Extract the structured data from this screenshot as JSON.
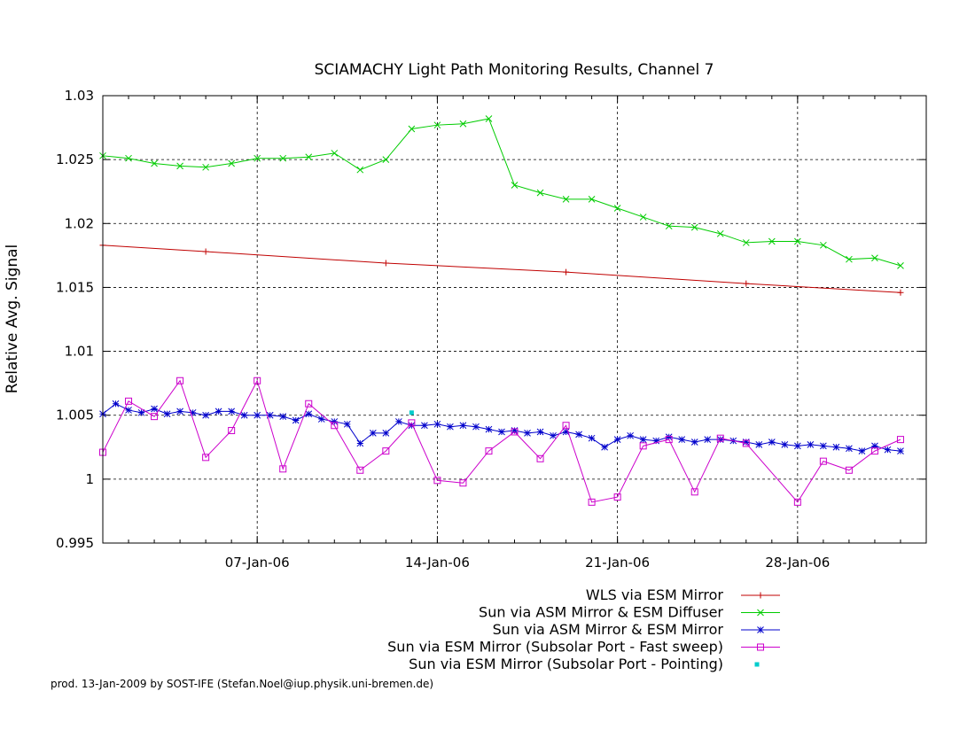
{
  "chart_data": {
    "type": "line",
    "title": "SCIAMACHY Light Path Monitoring Results, Channel 7",
    "xlabel": "",
    "ylabel": "Relative Avg. Signal",
    "x_range": [
      "2006-01-01",
      "2006-02-02"
    ],
    "x_ticks": [
      {
        "date": "2006-01-07",
        "label": "07-Jan-06"
      },
      {
        "date": "2006-01-14",
        "label": "14-Jan-06"
      },
      {
        "date": "2006-01-21",
        "label": "21-Jan-06"
      },
      {
        "date": "2006-01-28",
        "label": "28-Jan-06"
      }
    ],
    "ylim": [
      0.995,
      1.03
    ],
    "y_ticks": [
      0.995,
      1.0,
      1.005,
      1.01,
      1.015,
      1.02,
      1.025,
      1.03
    ],
    "y_tick_labels": [
      "0.995",
      "1",
      "1.005",
      "1.01",
      "1.015",
      "1.02",
      "1.025",
      "1.03"
    ],
    "grid": true,
    "legend_position": "bottom-right",
    "series": [
      {
        "name": "WLS via ESM Mirror",
        "color": "#c00000",
        "marker": "plus",
        "line": true,
        "points": [
          [
            "2006-01-01",
            1.0183
          ],
          [
            "2006-01-05",
            1.0178
          ],
          [
            "2006-01-12",
            1.0169
          ],
          [
            "2006-01-19",
            1.0162
          ],
          [
            "2006-01-26",
            1.0153
          ],
          [
            "2006-02-01",
            1.0146
          ]
        ]
      },
      {
        "name": "Sun via ASM Mirror & ESM Diffuser",
        "color": "#00cc00",
        "marker": "x",
        "line": true,
        "points": [
          [
            "2006-01-01",
            1.0253
          ],
          [
            "2006-01-02",
            1.0251
          ],
          [
            "2006-01-03",
            1.0247
          ],
          [
            "2006-01-04",
            1.0245
          ],
          [
            "2006-01-05",
            1.0244
          ],
          [
            "2006-01-06",
            1.0247
          ],
          [
            "2006-01-07",
            1.0251
          ],
          [
            "2006-01-08",
            1.0251
          ],
          [
            "2006-01-09",
            1.0252
          ],
          [
            "2006-01-10",
            1.0255
          ],
          [
            "2006-01-11",
            1.0242
          ],
          [
            "2006-01-12",
            1.025
          ],
          [
            "2006-01-13",
            1.0274
          ],
          [
            "2006-01-14",
            1.0277
          ],
          [
            "2006-01-15",
            1.0278
          ],
          [
            "2006-01-16",
            1.0282
          ],
          [
            "2006-01-17",
            1.023
          ],
          [
            "2006-01-18",
            1.0224
          ],
          [
            "2006-01-19",
            1.0219
          ],
          [
            "2006-01-20",
            1.0219
          ],
          [
            "2006-01-21",
            1.0212
          ],
          [
            "2006-01-22",
            1.0205
          ],
          [
            "2006-01-23",
            1.0198
          ],
          [
            "2006-01-24",
            1.0197
          ],
          [
            "2006-01-25",
            1.0192
          ],
          [
            "2006-01-26",
            1.0185
          ],
          [
            "2006-01-27",
            1.0186
          ],
          [
            "2006-01-28",
            1.0186
          ],
          [
            "2006-01-29",
            1.0183
          ],
          [
            "2006-01-30",
            1.0172
          ],
          [
            "2006-01-31",
            1.0173
          ],
          [
            "2006-02-01",
            1.0167
          ]
        ]
      },
      {
        "name": "Sun via ASM Mirror & ESM Mirror",
        "color": "#0000cc",
        "marker": "star",
        "line": true,
        "points": [
          [
            "2006-01-01",
            1.0051
          ],
          [
            "2006-01-01 12:00",
            1.0059
          ],
          [
            "2006-01-02",
            1.0054
          ],
          [
            "2006-01-02 12:00",
            1.0052
          ],
          [
            "2006-01-03",
            1.0055
          ],
          [
            "2006-01-03 12:00",
            1.0051
          ],
          [
            "2006-01-04",
            1.0053
          ],
          [
            "2006-01-04 12:00",
            1.0052
          ],
          [
            "2006-01-05",
            1.005
          ],
          [
            "2006-01-05 12:00",
            1.0053
          ],
          [
            "2006-01-06",
            1.0053
          ],
          [
            "2006-01-06 12:00",
            1.005
          ],
          [
            "2006-01-07",
            1.005
          ],
          [
            "2006-01-07 12:00",
            1.005
          ],
          [
            "2006-01-08",
            1.0049
          ],
          [
            "2006-01-08 12:00",
            1.0046
          ],
          [
            "2006-01-09",
            1.0051
          ],
          [
            "2006-01-09 12:00",
            1.0047
          ],
          [
            "2006-01-10",
            1.0045
          ],
          [
            "2006-01-10 12:00",
            1.0043
          ],
          [
            "2006-01-11",
            1.0028
          ],
          [
            "2006-01-11 12:00",
            1.0036
          ],
          [
            "2006-01-12",
            1.0036
          ],
          [
            "2006-01-12 12:00",
            1.0045
          ],
          [
            "2006-01-13",
            1.0042
          ],
          [
            "2006-01-13 12:00",
            1.0042
          ],
          [
            "2006-01-14",
            1.0043
          ],
          [
            "2006-01-14 12:00",
            1.0041
          ],
          [
            "2006-01-15",
            1.0042
          ],
          [
            "2006-01-15 12:00",
            1.0041
          ],
          [
            "2006-01-16",
            1.0039
          ],
          [
            "2006-01-16 12:00",
            1.0037
          ],
          [
            "2006-01-17",
            1.0038
          ],
          [
            "2006-01-17 12:00",
            1.0036
          ],
          [
            "2006-01-18",
            1.0037
          ],
          [
            "2006-01-18 12:00",
            1.0034
          ],
          [
            "2006-01-19",
            1.0037
          ],
          [
            "2006-01-19 12:00",
            1.0035
          ],
          [
            "2006-01-20",
            1.0032
          ],
          [
            "2006-01-20 12:00",
            1.0025
          ],
          [
            "2006-01-21",
            1.0031
          ],
          [
            "2006-01-21 12:00",
            1.0034
          ],
          [
            "2006-01-22",
            1.0031
          ],
          [
            "2006-01-22 12:00",
            1.003
          ],
          [
            "2006-01-23",
            1.0033
          ],
          [
            "2006-01-23 12:00",
            1.0031
          ],
          [
            "2006-01-24",
            1.0029
          ],
          [
            "2006-01-24 12:00",
            1.0031
          ],
          [
            "2006-01-25",
            1.0031
          ],
          [
            "2006-01-25 12:00",
            1.003
          ],
          [
            "2006-01-26",
            1.0029
          ],
          [
            "2006-01-26 12:00",
            1.0027
          ],
          [
            "2006-01-27",
            1.0029
          ],
          [
            "2006-01-27 12:00",
            1.0027
          ],
          [
            "2006-01-28",
            1.0026
          ],
          [
            "2006-01-28 12:00",
            1.0027
          ],
          [
            "2006-01-29",
            1.0026
          ],
          [
            "2006-01-29 12:00",
            1.0025
          ],
          [
            "2006-01-30",
            1.0024
          ],
          [
            "2006-01-30 12:00",
            1.0022
          ],
          [
            "2006-01-31",
            1.0026
          ],
          [
            "2006-01-31 12:00",
            1.0023
          ],
          [
            "2006-02-01",
            1.0022
          ]
        ]
      },
      {
        "name": "Sun via ESM Mirror (Subsolar Port - Fast sweep)",
        "color": "#cc00cc",
        "marker": "square",
        "line": true,
        "points": [
          [
            "2006-01-01",
            1.0021
          ],
          [
            "2006-01-02",
            1.0061
          ],
          [
            "2006-01-03",
            1.0049
          ],
          [
            "2006-01-04",
            1.0077
          ],
          [
            "2006-01-05",
            1.0017
          ],
          [
            "2006-01-06",
            1.0038
          ],
          [
            "2006-01-07",
            1.0077
          ],
          [
            "2006-01-08",
            1.0008
          ],
          [
            "2006-01-09",
            1.0059
          ],
          [
            "2006-01-10",
            1.0042
          ],
          [
            "2006-01-11",
            1.0007
          ],
          [
            "2006-01-12",
            1.0022
          ],
          [
            "2006-01-13",
            1.0044
          ],
          [
            "2006-01-14",
            0.9999
          ],
          [
            "2006-01-15",
            0.9997
          ],
          [
            "2006-01-16",
            1.0022
          ],
          [
            "2006-01-17",
            1.0037
          ],
          [
            "2006-01-18",
            1.0016
          ],
          [
            "2006-01-19",
            1.0042
          ],
          [
            "2006-01-20",
            0.9982
          ],
          [
            "2006-01-21",
            0.9986
          ],
          [
            "2006-01-22",
            1.0026
          ],
          [
            "2006-01-23",
            1.0031
          ],
          [
            "2006-01-24",
            0.999
          ],
          [
            "2006-01-25",
            1.0032
          ],
          [
            "2006-01-26",
            1.0028
          ],
          [
            "2006-01-28",
            0.9982
          ],
          [
            "2006-01-29",
            1.0014
          ],
          [
            "2006-01-30",
            1.0007
          ],
          [
            "2006-01-31",
            1.0022
          ],
          [
            "2006-02-01",
            1.0031
          ]
        ]
      },
      {
        "name": "Sun via ESM Mirror (Subsolar Port - Pointing)",
        "color": "#00cccc",
        "marker": "dot",
        "line": false,
        "points": [
          [
            "2006-01-13",
            1.0052
          ]
        ]
      }
    ]
  },
  "footer": {
    "credit": "prod. 13-Jan-2009 by SOST-IFE (Stefan.Noel@iup.physik.uni-bremen.de)"
  }
}
